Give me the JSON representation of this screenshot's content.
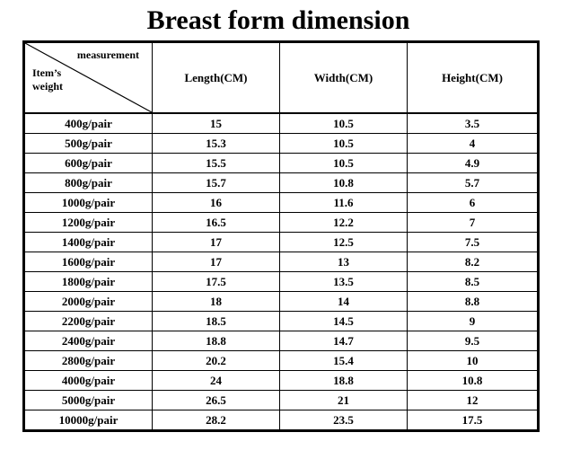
{
  "title": "Breast form dimension",
  "table": {
    "corner_top": "measurement",
    "corner_bottom_line1": "Item’s",
    "corner_bottom_line2": "weight",
    "columns": [
      "Length(CM)",
      "Width(CM)",
      "Height(CM)"
    ],
    "rows": [
      {
        "weight": "400g/pair",
        "length": "15",
        "width": "10.5",
        "height": "3.5"
      },
      {
        "weight": "500g/pair",
        "length": "15.3",
        "width": "10.5",
        "height": "4"
      },
      {
        "weight": "600g/pair",
        "length": "15.5",
        "width": "10.5",
        "height": "4.9"
      },
      {
        "weight": "800g/pair",
        "length": "15.7",
        "width": "10.8",
        "height": "5.7"
      },
      {
        "weight": "1000g/pair",
        "length": "16",
        "width": "11.6",
        "height": "6"
      },
      {
        "weight": "1200g/pair",
        "length": "16.5",
        "width": "12.2",
        "height": "7"
      },
      {
        "weight": "1400g/pair",
        "length": "17",
        "width": "12.5",
        "height": "7.5"
      },
      {
        "weight": "1600g/pair",
        "length": "17",
        "width": "13",
        "height": "8.2"
      },
      {
        "weight": "1800g/pair",
        "length": "17.5",
        "width": "13.5",
        "height": "8.5"
      },
      {
        "weight": "2000g/pair",
        "length": "18",
        "width": "14",
        "height": "8.8"
      },
      {
        "weight": "2200g/pair",
        "length": "18.5",
        "width": "14.5",
        "height": "9"
      },
      {
        "weight": "2400g/pair",
        "length": "18.8",
        "width": "14.7",
        "height": "9.5"
      },
      {
        "weight": "2800g/pair",
        "length": "20.2",
        "width": "15.4",
        "height": "10"
      },
      {
        "weight": "4000g/pair",
        "length": "24",
        "width": "18.8",
        "height": "10.8"
      },
      {
        "weight": "5000g/pair",
        "length": "26.5",
        "width": "21",
        "height": "12"
      },
      {
        "weight": "10000g/pair",
        "length": "28.2",
        "width": "23.5",
        "height": "17.5"
      }
    ]
  }
}
